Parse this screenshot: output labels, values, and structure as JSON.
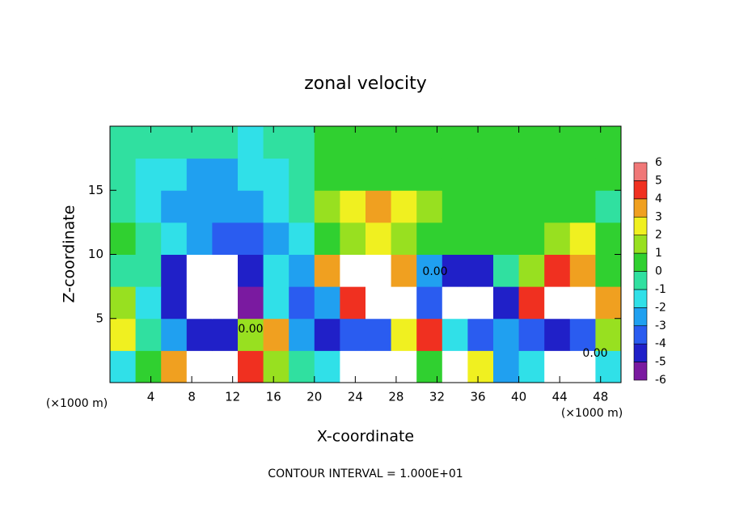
{
  "chart_data": {
    "type": "heatmap",
    "title": "zonal velocity",
    "x_label": "X-coordinate",
    "y_label": "Z-coordinate",
    "x_unit_labels": [
      "(×1000 m)",
      "(×1000 m)"
    ],
    "footnote": "CONTOUR INTERVAL = 1.000E+01",
    "contour_labels": [
      "0.00",
      "0.00",
      "0.00"
    ],
    "x": [
      1.25,
      3.75,
      6.25,
      8.75,
      11.25,
      13.75,
      16.25,
      18.75,
      21.25,
      23.75,
      26.25,
      28.75,
      31.25,
      33.75,
      36.25,
      38.75,
      41.25,
      43.75,
      46.25,
      48.75
    ],
    "y": [
      1.25,
      3.75,
      6.25,
      8.75,
      11.25,
      13.75,
      16.25,
      18.75
    ],
    "z": [
      [
        -1,
        1,
        4,
        7,
        7,
        5,
        2,
        0,
        -1,
        7,
        7,
        7,
        1,
        7,
        3,
        -2,
        -1,
        7,
        7,
        -1
      ],
      [
        3,
        0,
        -2,
        -4,
        -4,
        2,
        4,
        -2,
        -4,
        -3,
        -3,
        3,
        5,
        -1,
        -3,
        -2,
        -3,
        -4,
        -3,
        2
      ],
      [
        2,
        -1,
        -4,
        7,
        7,
        -5,
        -1,
        -3,
        -2,
        5,
        7,
        7,
        -3,
        7,
        7,
        -4,
        5,
        7,
        7,
        4
      ],
      [
        0,
        -0.5,
        -4,
        7,
        7,
        -4,
        -1,
        -2,
        4,
        7,
        7,
        4,
        -2,
        -4,
        -4,
        0,
        2,
        5,
        4,
        1
      ],
      [
        0.5,
        -0.5,
        -1.5,
        -2.5,
        -3,
        -3,
        -2,
        -1,
        0.5,
        2,
        2.5,
        2,
        1,
        0.5,
        1,
        1,
        1,
        2,
        3,
        0.5
      ],
      [
        0,
        -1,
        -2,
        -2,
        -2.5,
        -2,
        -1,
        0,
        1.5,
        3,
        3.5,
        3,
        1.5,
        1,
        1,
        1,
        0.5,
        0.5,
        0.5,
        0
      ],
      [
        -0.5,
        -1,
        -1.5,
        -2,
        -2,
        -1.5,
        -1,
        -0.5,
        0.5,
        1,
        1,
        1,
        1,
        1,
        1,
        1,
        0.5,
        0.5,
        0.5,
        0.5
      ],
      [
        0,
        0,
        -0.5,
        -0.5,
        -0.5,
        -1,
        -0.5,
        0,
        0.5,
        0.5,
        1,
        1,
        1,
        1,
        1,
        0.5,
        0.5,
        0.5,
        0.5,
        0.5
      ]
    ],
    "xlim": [
      0,
      50
    ],
    "ylim": [
      0,
      20
    ],
    "xticks": [
      4,
      8,
      12,
      16,
      20,
      24,
      28,
      32,
      36,
      40,
      44,
      48
    ],
    "yticks": [
      5,
      10,
      15
    ],
    "colorbar": {
      "levels": [
        -6,
        -5,
        -4,
        -3,
        -2,
        -1,
        0,
        1,
        2,
        3,
        4,
        5,
        6
      ],
      "colors": [
        "#7a1aa0",
        "#2020c8",
        "#2a5cf0",
        "#20a0f0",
        "#30e0e8",
        "#30e0a0",
        "#30d030",
        "#98e020",
        "#f0f020",
        "#f0a020",
        "#f03020",
        "#f07878"
      ]
    },
    "out_of_range_color": "#ffffff"
  }
}
